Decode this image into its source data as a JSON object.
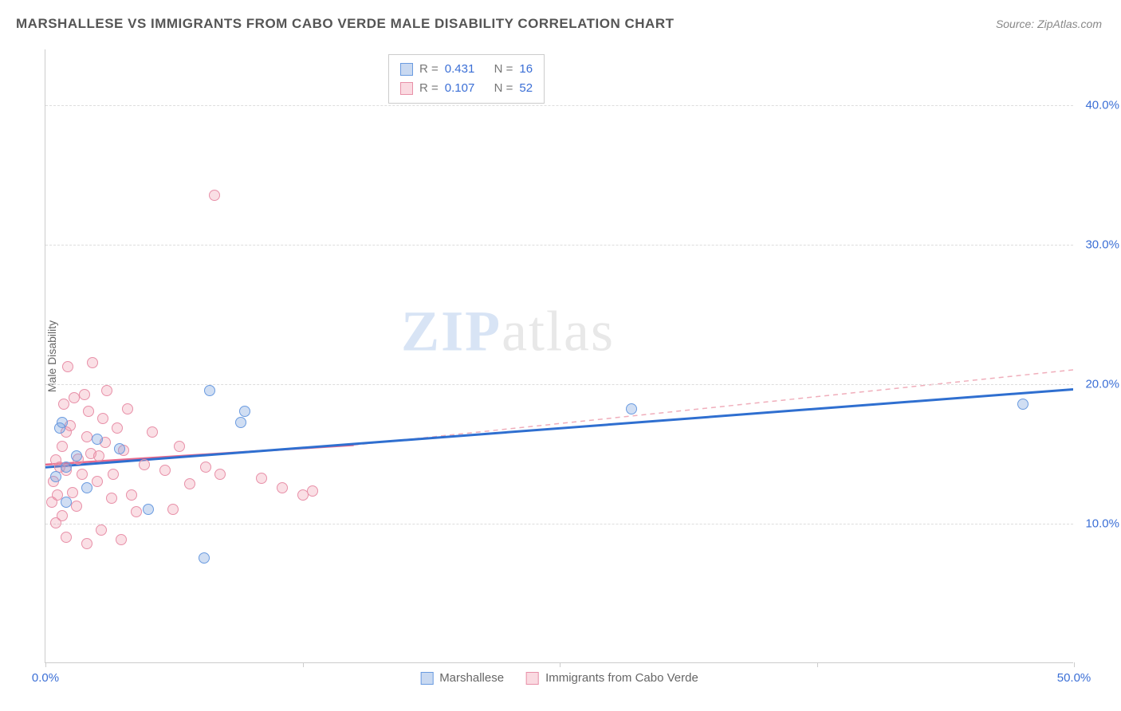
{
  "header": {
    "title": "MARSHALLESE VS IMMIGRANTS FROM CABO VERDE MALE DISABILITY CORRELATION CHART",
    "source": "Source: ZipAtlas.com"
  },
  "axes": {
    "y_label": "Male Disability",
    "x_min": 0.0,
    "x_max": 50.0,
    "y_min": 0.0,
    "y_max": 44.0,
    "y_ticks": [
      10.0,
      20.0,
      30.0,
      40.0
    ],
    "y_tick_labels": [
      "10.0%",
      "20.0%",
      "30.0%",
      "40.0%"
    ],
    "x_ticks": [
      0.0,
      12.5,
      25.0,
      37.5,
      50.0
    ],
    "x_tick_labels": [
      "0.0%",
      "",
      "",
      "",
      "50.0%"
    ]
  },
  "series": {
    "blue": {
      "label": "Marshallese",
      "color_fill": "rgba(120,160,220,0.35)",
      "color_stroke": "#6a9be0",
      "trend_color": "#2f6fd0",
      "r": "0.431",
      "n": "16",
      "trend": {
        "x1": 0,
        "y1": 14.0,
        "x2": 50,
        "y2": 19.6
      },
      "points": [
        [
          0.5,
          13.3
        ],
        [
          0.8,
          17.2
        ],
        [
          1.0,
          14.0
        ],
        [
          1.0,
          11.5
        ],
        [
          1.5,
          14.8
        ],
        [
          2.0,
          12.5
        ],
        [
          2.5,
          16.0
        ],
        [
          3.6,
          15.3
        ],
        [
          5.0,
          11.0
        ],
        [
          7.7,
          7.5
        ],
        [
          8.0,
          19.5
        ],
        [
          9.5,
          17.2
        ],
        [
          9.7,
          18.0
        ],
        [
          28.5,
          18.2
        ],
        [
          47.5,
          18.5
        ],
        [
          0.7,
          16.8
        ]
      ]
    },
    "pink": {
      "label": "Immigrants from Cabo Verde",
      "color_fill": "rgba(240,150,170,0.30)",
      "color_stroke": "#e890a8",
      "trend_solid_color": "#e86a8c",
      "trend_dash_color": "#f0aebb",
      "r": "0.107",
      "n": "52",
      "trend_solid": {
        "x1": 0,
        "y1": 14.2,
        "x2": 15,
        "y2": 15.6
      },
      "trend_dash": {
        "x1": 15,
        "y1": 15.6,
        "x2": 50,
        "y2": 21.0
      },
      "points": [
        [
          0.3,
          11.5
        ],
        [
          0.4,
          13.0
        ],
        [
          0.5,
          10.0
        ],
        [
          0.5,
          14.5
        ],
        [
          0.6,
          12.0
        ],
        [
          0.7,
          14.0
        ],
        [
          0.8,
          15.5
        ],
        [
          0.8,
          10.5
        ],
        [
          0.9,
          18.5
        ],
        [
          1.0,
          13.8
        ],
        [
          1.0,
          16.5
        ],
        [
          1.1,
          21.2
        ],
        [
          1.2,
          17.0
        ],
        [
          1.3,
          12.2
        ],
        [
          1.4,
          19.0
        ],
        [
          1.5,
          11.2
        ],
        [
          1.6,
          14.6
        ],
        [
          1.8,
          13.5
        ],
        [
          1.9,
          19.2
        ],
        [
          2.0,
          16.2
        ],
        [
          2.0,
          8.5
        ],
        [
          2.1,
          18.0
        ],
        [
          2.2,
          15.0
        ],
        [
          2.3,
          21.5
        ],
        [
          2.5,
          13.0
        ],
        [
          2.6,
          14.8
        ],
        [
          2.7,
          9.5
        ],
        [
          2.8,
          17.5
        ],
        [
          2.9,
          15.8
        ],
        [
          3.0,
          19.5
        ],
        [
          3.2,
          11.8
        ],
        [
          3.3,
          13.5
        ],
        [
          3.5,
          16.8
        ],
        [
          3.7,
          8.8
        ],
        [
          3.8,
          15.2
        ],
        [
          4.0,
          18.2
        ],
        [
          4.2,
          12.0
        ],
        [
          4.4,
          10.8
        ],
        [
          4.8,
          14.2
        ],
        [
          5.2,
          16.5
        ],
        [
          5.8,
          13.8
        ],
        [
          6.2,
          11.0
        ],
        [
          6.5,
          15.5
        ],
        [
          7.0,
          12.8
        ],
        [
          7.8,
          14.0
        ],
        [
          8.2,
          33.5
        ],
        [
          8.5,
          13.5
        ],
        [
          10.5,
          13.2
        ],
        [
          11.5,
          12.5
        ],
        [
          12.5,
          12.0
        ],
        [
          13.0,
          12.3
        ],
        [
          1.0,
          9.0
        ]
      ]
    }
  },
  "watermark": {
    "zip": "ZIP",
    "rest": "atlas"
  },
  "stat_labels": {
    "r_prefix": "R =",
    "n_prefix": "N ="
  }
}
